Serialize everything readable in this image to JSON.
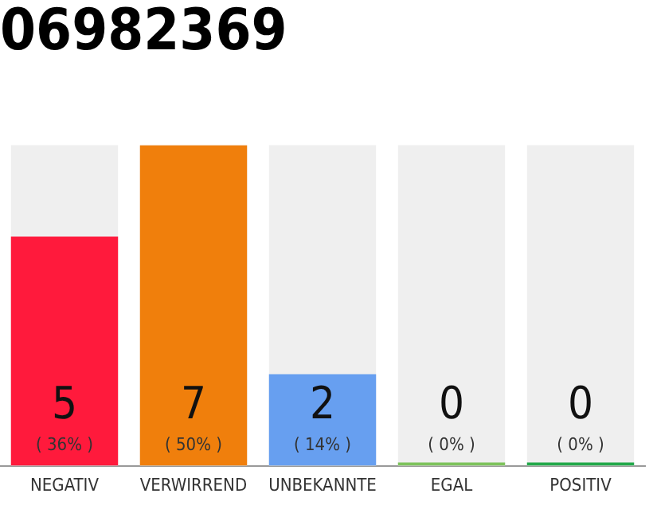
{
  "chart_data": {
    "type": "bar",
    "title": "06982369",
    "categories": [
      "NEGATIV",
      "VERWIRREND",
      "UNBEKANNTE",
      "EGAL",
      "POSITIV"
    ],
    "values": [
      5,
      7,
      2,
      0,
      0
    ],
    "colors": [
      "#ff1a3c",
      "#f07f0c",
      "#679ff0",
      "#7dc35b",
      "#22a94a"
    ],
    "ylim": [
      0,
      7
    ],
    "tick_labels": "x",
    "grid": false,
    "legend": false,
    "data_labels": true,
    "annotations": [
      "( 36% )",
      "( 50% )",
      "( 14% )",
      "( 0% )",
      "( 0% )"
    ]
  }
}
